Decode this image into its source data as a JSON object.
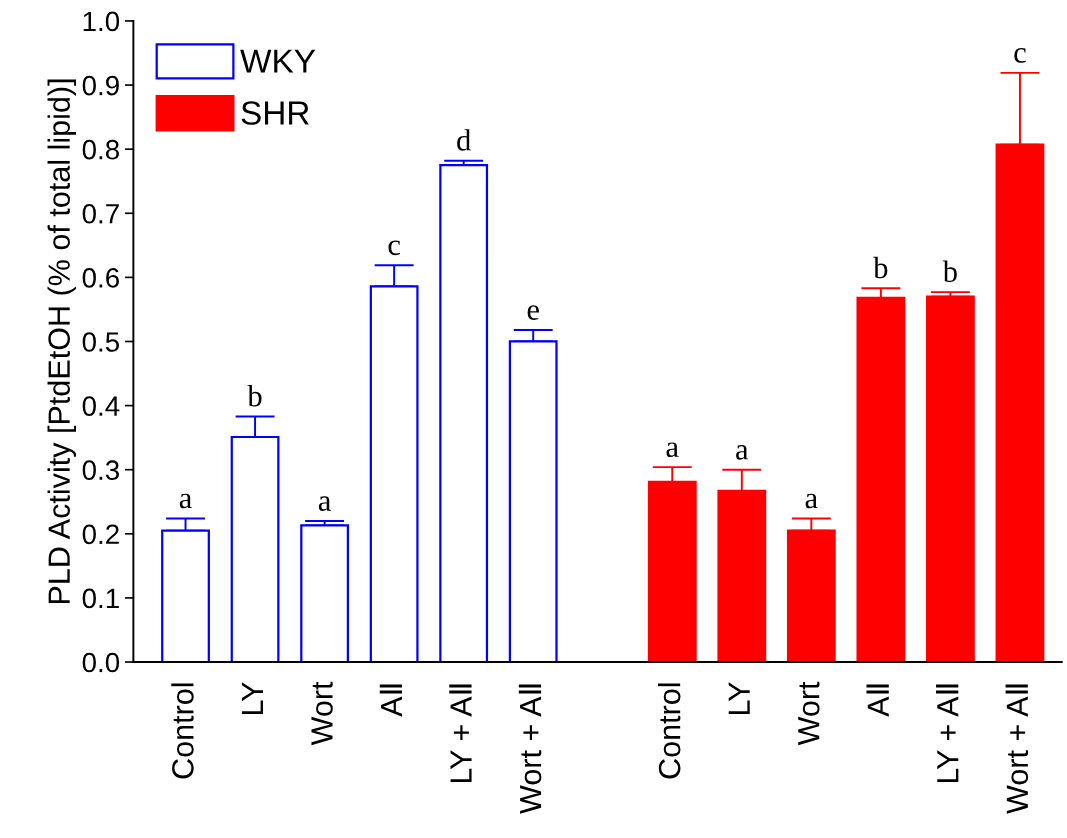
{
  "chart_data": {
    "type": "bar",
    "ylabel": "PLD Activity [PtdEtOH (% of total lipid)]",
    "categories": [
      "Control",
      "LY",
      "Wort",
      "AⅡ",
      "LY + AⅡ",
      "Wort + AⅡ",
      null,
      "Control",
      "LY",
      "Wort",
      "AⅡ",
      "LY + AⅡ",
      "Wort + AⅡ"
    ],
    "series": [
      {
        "name": "WKY",
        "color": "#0000ff",
        "values": [
          0.205,
          0.351,
          0.213,
          0.586,
          0.775,
          0.5,
          null,
          null,
          null,
          null,
          null,
          null,
          null
        ],
        "errors": [
          [
            0.205,
            0.224
          ],
          [
            0.351,
            0.383
          ],
          [
            0.213,
            0.22
          ],
          [
            0.586,
            0.619
          ],
          [
            0.775,
            0.782
          ],
          [
            0.5,
            0.518
          ],
          null,
          null,
          null,
          null,
          null,
          null,
          null
        ],
        "value_labels": [
          "a",
          "b",
          "a",
          "c",
          "d",
          "e",
          null,
          null,
          null,
          null,
          null,
          null,
          null
        ]
      },
      {
        "name": "SHR",
        "color": "#ff0000",
        "values": [
          null,
          null,
          null,
          null,
          null,
          null,
          null,
          0.281,
          0.267,
          0.205,
          0.568,
          0.57,
          0.807
        ],
        "errors": [
          null,
          null,
          null,
          null,
          null,
          null,
          null,
          [
            0.281,
            0.304
          ],
          [
            0.267,
            0.3
          ],
          [
            0.205,
            0.224
          ],
          [
            0.568,
            0.583
          ],
          [
            0.57,
            0.577
          ],
          [
            0.807,
            0.919
          ]
        ],
        "value_labels": [
          null,
          null,
          null,
          null,
          null,
          null,
          null,
          "a",
          "a",
          "a",
          "b",
          "b",
          "c"
        ]
      }
    ],
    "ylim": [
      0,
      1.0
    ],
    "yticks": [
      {
        "value": 0,
        "label": "0.0"
      },
      0.1,
      0.2,
      0.3,
      0.4,
      0.5,
      0.6,
      0.7,
      0.8,
      0.9,
      {
        "value": 1.0,
        "label": "1.0"
      }
    ],
    "grid": false,
    "legend": "top left"
  }
}
